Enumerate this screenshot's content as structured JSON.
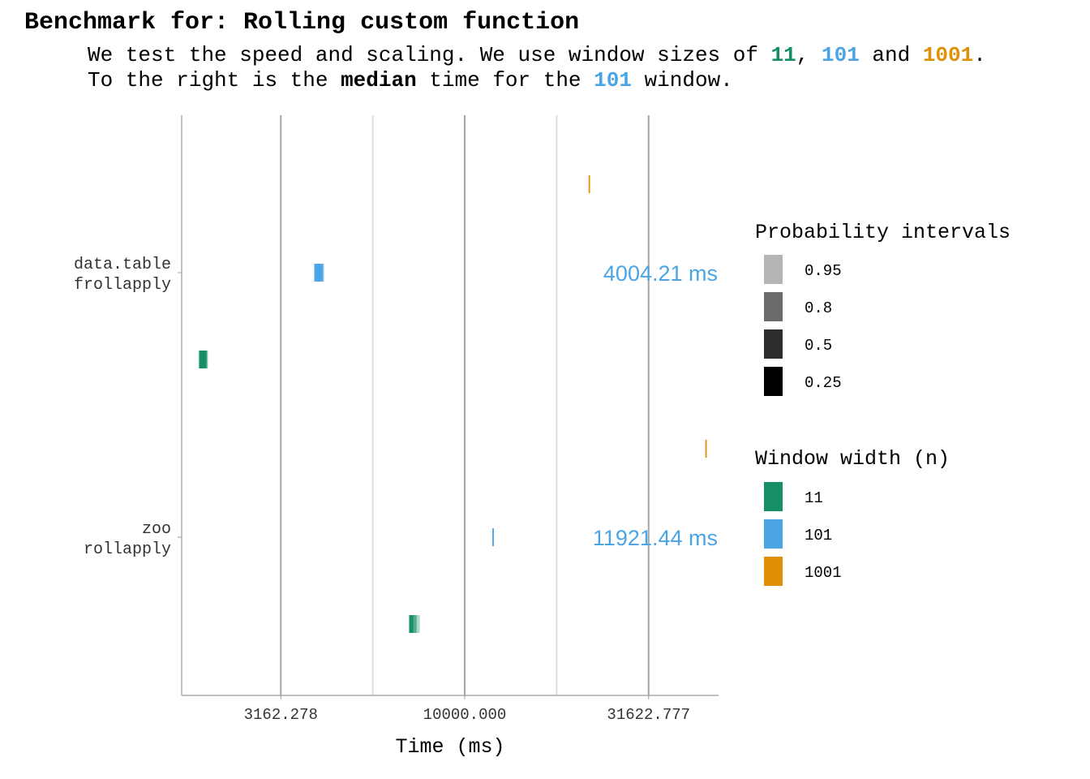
{
  "title": "Benchmark for: Rolling custom function",
  "subtitle": {
    "line1": [
      "We test the speed and scaling. We use window sizes of ",
      "11",
      ", ",
      "101",
      " and ",
      "1001",
      "."
    ],
    "line2": [
      "To the right is the ",
      "median",
      " time for the ",
      "101",
      " window."
    ]
  },
  "colors": {
    "w11": "#168f64",
    "w101": "#4ba5e4",
    "w1001": "#e09007",
    "text": "#000000",
    "axis_text": "#333333",
    "gridline_major": "#a6a6a6",
    "gridline_minor": "#dedede"
  },
  "chart_data": {
    "type": "interval",
    "xlabel": "Time (ms)",
    "x_scale": "log10",
    "xlim": [
      1700,
      49000
    ],
    "x_ticks": [
      {
        "value": 3162.278,
        "label": "3162.278"
      },
      {
        "value": 10000,
        "label": "10000.000"
      },
      {
        "value": 31622.777,
        "label": "31622.777"
      }
    ],
    "x_minor_gridlines": [
      5623.413,
      17782.794
    ],
    "categories": [
      {
        "line1": "data.table",
        "line2": "frollapply"
      },
      {
        "line1": "zoo",
        "line2": "rollapply"
      }
    ],
    "series": [
      {
        "name": "11",
        "color_key": "w11",
        "intervals": [
          {
            "category": 0,
            "0.95": [
              1890,
              2005
            ],
            "0.8": [
              1895,
              1995
            ],
            "0.5": [
              1900,
              1985
            ],
            "0.25": [
              1905,
              1970
            ]
          },
          {
            "category": 1,
            "0.95": [
              7050,
              7550
            ],
            "0.8": [
              7060,
              7400
            ],
            "0.5": [
              7080,
              7250
            ],
            "0.25": [
              7100,
              7200
            ]
          }
        ]
      },
      {
        "name": "101",
        "color_key": "w101",
        "intervals": [
          {
            "category": 0,
            "0.95": [
              3890,
              4150
            ],
            "0.8": [
              3900,
              4130
            ],
            "0.5": [
              3910,
              4110
            ],
            "0.25": [
              3920,
              4090
            ]
          },
          {
            "category": 1,
            "0.95": [
              11880,
              11970
            ],
            "0.8": [
              11890,
              11960
            ],
            "0.5": [
              11900,
              11950
            ],
            "0.25": [
              11910,
              11940
            ]
          }
        ]
      },
      {
        "name": "1001",
        "color_key": "w1001",
        "intervals": [
          {
            "category": 0,
            "0.95": [
              21700,
              21860
            ],
            "0.8": [
              21720,
              21840
            ],
            "0.5": [
              21740,
              21820
            ],
            "0.25": [
              21750,
              21810
            ]
          },
          {
            "category": 1,
            "0.95": [
              45100,
              45300
            ],
            "0.8": [
              45120,
              45280
            ],
            "0.5": [
              45140,
              45260
            ],
            "0.25": [
              45160,
              45240
            ]
          }
        ]
      }
    ],
    "median_labels": [
      {
        "category": 0,
        "text": "4004.21 ms"
      },
      {
        "category": 1,
        "text": "11921.44 ms"
      }
    ],
    "legend_prob": {
      "title": "Probability intervals",
      "items": [
        {
          "label": "0.95",
          "color": "#b5b5b5"
        },
        {
          "label": "0.8",
          "color": "#6b6b6b"
        },
        {
          "label": "0.5",
          "color": "#2e2e2e"
        },
        {
          "label": "0.25",
          "color": "#000000"
        }
      ]
    },
    "legend_width": {
      "title": "Window width (n)",
      "items": [
        {
          "label": "11",
          "color_key": "w11"
        },
        {
          "label": "101",
          "color_key": "w101"
        },
        {
          "label": "1001",
          "color_key": "w1001"
        }
      ]
    },
    "legend_placement": "right"
  }
}
